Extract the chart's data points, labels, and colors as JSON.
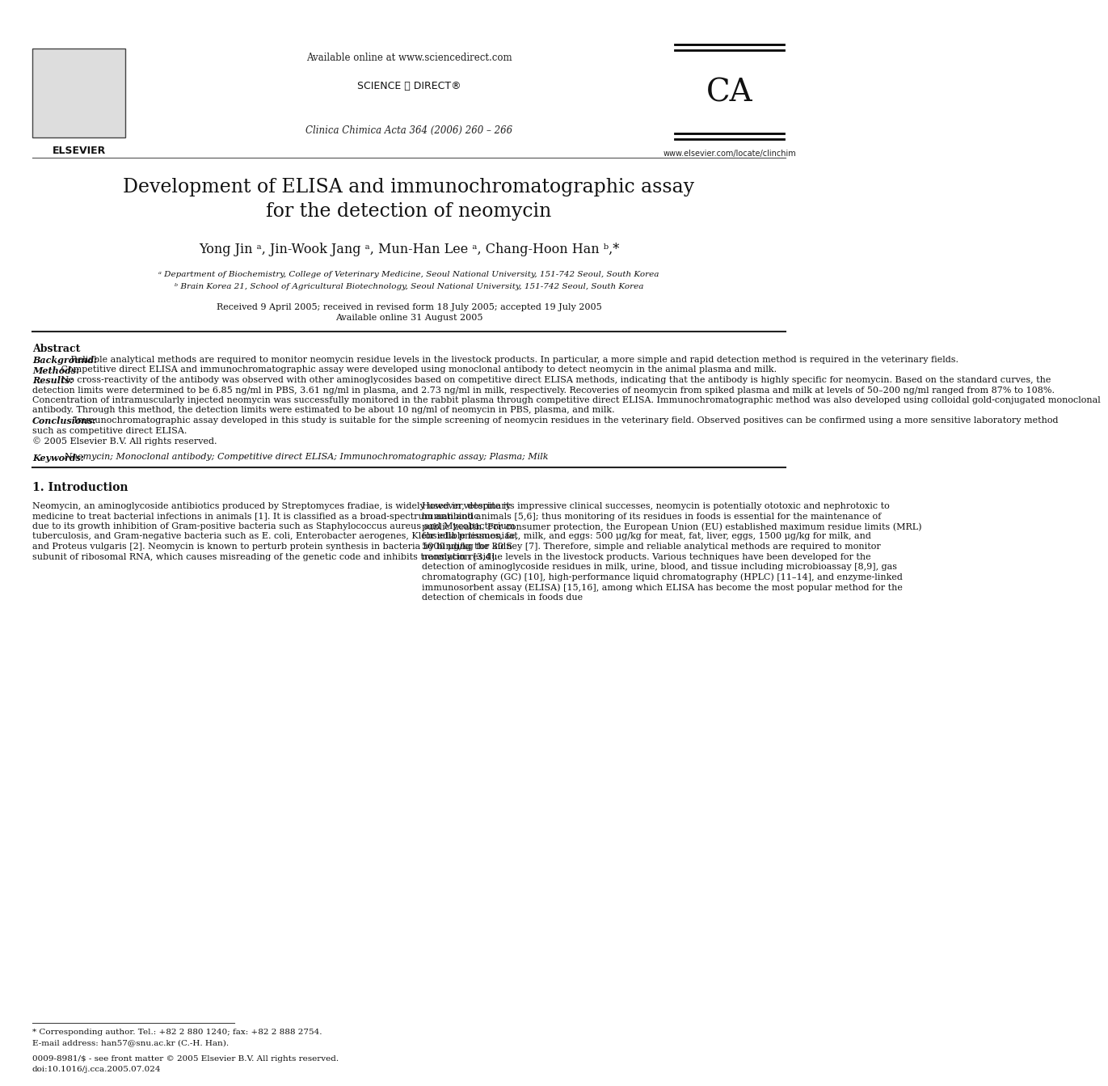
{
  "page_bg": "#ffffff",
  "header": {
    "available_online": "Available online at www.sciencedirect.com",
    "journal_name": "Clinica Chimica Acta 364 (2006) 260 – 266",
    "elsevier_label": "ELSEVIER",
    "sciencedirect_label": "SCIENCE ⓓ DIRECT®",
    "ca_url": "www.elsevier.com/locate/clinchim"
  },
  "title": "Development of ELISA and immunochromatographic assay\nfor the detection of neomycin",
  "authors": "Yong Jin ᵃ, Jin-Wook Jang ᵃ, Mun-Han Lee ᵃ, Chang-Hoon Han ᵇ,*",
  "affil1": "ᵃ Department of Biochemistry, College of Veterinary Medicine, Seoul National University, 151-742 Seoul, South Korea",
  "affil2": "ᵇ Brain Korea 21, School of Agricultural Biotechnology, Seoul National University, 151-742 Seoul, South Korea",
  "dates": "Received 9 April 2005; received in revised form 18 July 2005; accepted 19 July 2005",
  "available_online_date": "Available online 31 August 2005",
  "abstract_header": "Abstract",
  "abstract_background_label": "Background:",
  "abstract_background": "Reliable analytical methods are required to monitor neomycin residue levels in the livestock products. In particular, a more simple and rapid detection method is required in the veterinary fields.",
  "abstract_methods_label": "Methods:",
  "abstract_methods": "Competitive direct ELISA and immunochromatographic assay were developed using monoclonal antibody to detect neomycin in the animal plasma and milk.",
  "abstract_results_label": "Results:",
  "abstract_results": "No cross-reactivity of the antibody was observed with other aminoglycosides based on competitive direct ELISA methods, indicating that the antibody is highly specific for neomycin. Based on the standard curves, the detection limits were determined to be 6.85 ng/ml in PBS, 3.61 ng/ml in plasma, and 2.73 ng/ml in milk, respectively. Recoveries of neomycin from spiked plasma and milk at levels of 50–200 ng/ml ranged from 87% to 108%. Concentration of intramuscularly injected neomycin was successfully monitored in the rabbit plasma through competitive direct ELISA. Immunochromatographic method was also developed using colloidal gold-conjugated monoclonal antibody. Through this method, the detection limits were estimated to be about 10 ng/ml of neomycin in PBS, plasma, and milk.",
  "abstract_conclusions_label": "Conclusions:",
  "abstract_conclusions": "Immunochromatographic assay developed in this study is suitable for the simple screening of neomycin residues in the veterinary field. Observed positives can be confirmed using a more sensitive laboratory method such as competitive direct ELISA.",
  "abstract_copyright": "© 2005 Elsevier B.V. All rights reserved.",
  "keywords_label": "Keywords:",
  "keywords": "Neomycin; Monoclonal antibody; Competitive direct ELISA; Immunochromatographic assay; Plasma; Milk",
  "section1_header": "1. Introduction",
  "intro_left": "Neomycin, an aminoglycoside antibiotics produced by Streptomyces fradiae, is widely used in veterinary medicine to treat bacterial infections in animals [1]. It is classified as a broad-spectrum antibiotic due to its growth inhibition of Gram-positive bacteria such as Staphylococcus aureus and Mycobacterium tuberculosis, and Gram-negative bacteria such as E. coli, Enterobacter aerogenes, Klebsiella pneumoniae, and Proteus vulgaris [2]. Neomycin is known to perturb protein synthesis in bacteria by binding the 30 S subunit of ribosomal RNA, which causes misreading of the genetic code and inhibits translation [3,4].",
  "intro_right": "However, despite its impressive clinical successes, neomycin is potentially ototoxic and nephrotoxic to human and animals [5,6]; thus monitoring of its residues in foods is essential for the maintenance of public health. For consumer protection, the European Union (EU) established maximum residue limits (MRL) for edible tissues, fat, milk, and eggs: 500 μg/kg for meat, fat, liver, eggs, 1500 μg/kg for milk, and 5000 μg/kg for kidney [7].\n\nTherefore, simple and reliable analytical methods are required to monitor neomycin residue levels in the livestock products. Various techniques have been developed for the detection of aminoglycoside residues in milk, urine, blood, and tissue including microbioassay [8,9], gas chromatography (GC) [10], high-performance liquid chromatography (HPLC) [11–14], and enzyme-linked immunosorbent assay (ELISA) [15,16], among which ELISA has become the most popular method for the detection of chemicals in foods due",
  "footnote_star": "* Corresponding author. Tel.: +82 2 880 1240; fax: +82 2 888 2754.",
  "footnote_email": "E-mail address: han57@snu.ac.kr (C.-H. Han).",
  "footer_issn": "0009-8981/$ - see front matter © 2005 Elsevier B.V. All rights reserved.",
  "footer_doi": "doi:10.1016/j.cca.2005.07.024"
}
